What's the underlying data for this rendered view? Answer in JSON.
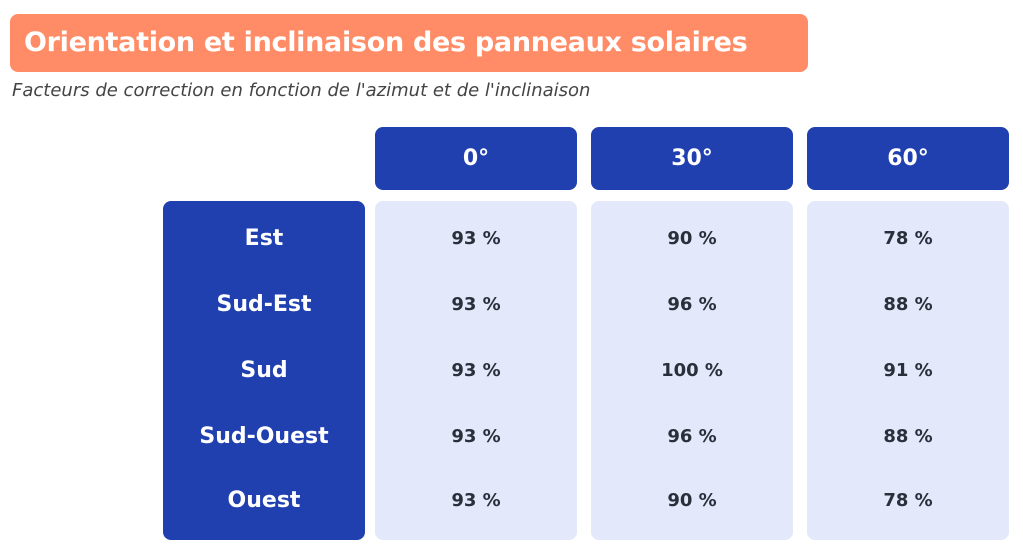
{
  "title": "Orientation et inclinaison des panneaux solaires",
  "subtitle": "Facteurs de correction en fonction de l'azimut et de l'inclinaison",
  "colors": {
    "title_bg": "#FF8C66",
    "header_bg": "#2040B0",
    "cell_bg": "#E3E8FB"
  },
  "chart_data": {
    "type": "table",
    "columns": [
      "0°",
      "30°",
      "60°"
    ],
    "rows": [
      "Est",
      "Sud-Est",
      "Sud",
      "Sud-Ouest",
      "Ouest"
    ],
    "values": [
      [
        "93 %",
        "90 %",
        "78 %"
      ],
      [
        "93 %",
        "96 %",
        "88 %"
      ],
      [
        "93 %",
        "100 %",
        "91 %"
      ],
      [
        "93 %",
        "96 %",
        "88 %"
      ],
      [
        "93 %",
        "90 %",
        "78 %"
      ]
    ]
  }
}
